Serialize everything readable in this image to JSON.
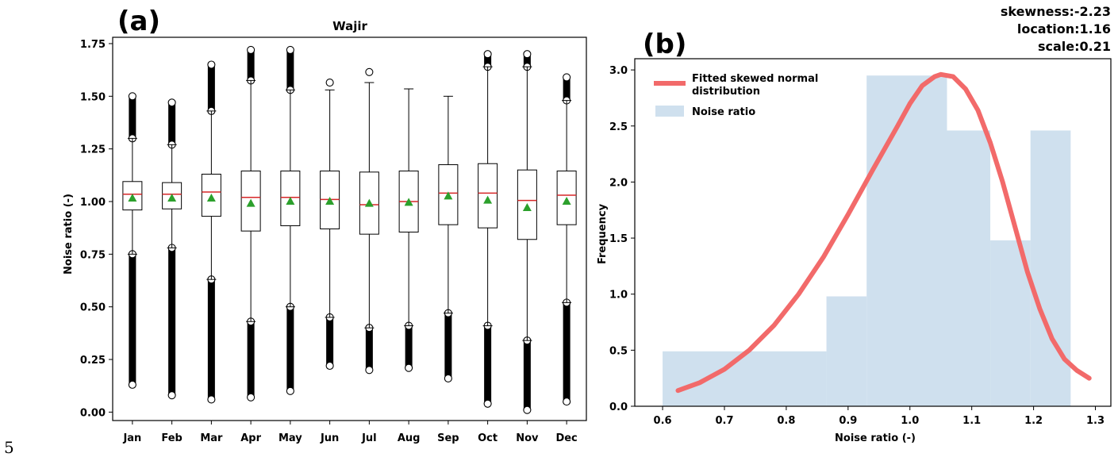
{
  "page_number": "5",
  "chart_data": [
    {
      "panel_label": "(a)",
      "type": "box",
      "title": "Wajir",
      "xlabel": "",
      "ylabel": "Noise ratio (-)",
      "ylim": [
        -0.04,
        1.78
      ],
      "yticks": [
        0.0,
        0.25,
        0.5,
        0.75,
        1.0,
        1.25,
        1.5,
        1.75
      ],
      "ytick_labels": [
        "0.00",
        "0.25",
        "0.50",
        "0.75",
        "1.00",
        "1.25",
        "1.50",
        "1.75"
      ],
      "colors": {
        "box": "#000000",
        "median": "#d62728",
        "mean_marker": "#2ca02c"
      },
      "categories": [
        "Jan",
        "Feb",
        "Mar",
        "Apr",
        "May",
        "Jun",
        "Jul",
        "Aug",
        "Sep",
        "Oct",
        "Nov",
        "Dec"
      ],
      "boxes": [
        {
          "q1": 0.96,
          "median": 1.035,
          "q3": 1.095,
          "mean": 1.015,
          "whisker_low": 0.75,
          "whisker_high": 1.3,
          "outlier_low": [
            0.13,
            0.75
          ],
          "outlier_high": [
            1.3,
            1.5
          ]
        },
        {
          "q1": 0.965,
          "median": 1.035,
          "q3": 1.09,
          "mean": 1.015,
          "whisker_low": 0.78,
          "whisker_high": 1.27,
          "outlier_low": [
            0.08,
            0.78
          ],
          "outlier_high": [
            1.27,
            1.47
          ]
        },
        {
          "q1": 0.93,
          "median": 1.045,
          "q3": 1.13,
          "mean": 1.015,
          "whisker_low": 0.63,
          "whisker_high": 1.43,
          "outlier_low": [
            0.06,
            0.63
          ],
          "outlier_high": [
            1.43,
            1.65
          ]
        },
        {
          "q1": 0.86,
          "median": 1.02,
          "q3": 1.145,
          "mean": 0.99,
          "whisker_low": 0.43,
          "whisker_high": 1.575,
          "outlier_low": [
            0.07,
            0.43
          ],
          "outlier_high": [
            1.575,
            1.72
          ]
        },
        {
          "q1": 0.885,
          "median": 1.02,
          "q3": 1.145,
          "mean": 1.0,
          "whisker_low": 0.5,
          "whisker_high": 1.53,
          "outlier_low": [
            0.1,
            0.5
          ],
          "outlier_high": [
            1.53,
            1.72
          ]
        },
        {
          "q1": 0.87,
          "median": 1.01,
          "q3": 1.145,
          "mean": 1.0,
          "whisker_low": 0.45,
          "whisker_high": 1.53,
          "outlier_low": [
            0.22,
            0.45
          ],
          "outlier_high": [
            1.565,
            1.565
          ]
        },
        {
          "q1": 0.845,
          "median": 0.985,
          "q3": 1.14,
          "mean": 0.99,
          "whisker_low": 0.4,
          "whisker_high": 1.565,
          "outlier_low": [
            0.2,
            0.4
          ],
          "outlier_high": [
            1.615,
            1.615
          ]
        },
        {
          "q1": 0.855,
          "median": 1.0,
          "q3": 1.145,
          "mean": 0.995,
          "whisker_low": 0.41,
          "whisker_high": 1.535,
          "outlier_low": [
            0.21,
            0.41
          ],
          "outlier_high": []
        },
        {
          "q1": 0.89,
          "median": 1.04,
          "q3": 1.175,
          "mean": 1.025,
          "whisker_low": 0.47,
          "whisker_high": 1.5,
          "outlier_low": [
            0.16,
            0.47
          ],
          "outlier_high": []
        },
        {
          "q1": 0.875,
          "median": 1.04,
          "q3": 1.18,
          "mean": 1.005,
          "whisker_low": 0.41,
          "whisker_high": 1.64,
          "outlier_low": [
            0.04,
            0.41
          ],
          "outlier_high": [
            1.64,
            1.7
          ]
        },
        {
          "q1": 0.82,
          "median": 1.005,
          "q3": 1.15,
          "mean": 0.97,
          "whisker_low": 0.34,
          "whisker_high": 1.64,
          "outlier_low": [
            0.01,
            0.34
          ],
          "outlier_high": [
            1.64,
            1.7
          ]
        },
        {
          "q1": 0.89,
          "median": 1.03,
          "q3": 1.145,
          "mean": 1.0,
          "whisker_low": 0.52,
          "whisker_high": 1.48,
          "outlier_low": [
            0.05,
            0.52
          ],
          "outlier_high": [
            1.48,
            1.59
          ]
        }
      ]
    },
    {
      "panel_label": "(b)",
      "type": "histogram_with_fit",
      "xlabel": "Noise ratio (-)",
      "ylabel": "Frequency",
      "xlim": [
        0.555,
        1.325
      ],
      "ylim": [
        0.0,
        3.1
      ],
      "xticks": [
        0.6,
        0.7,
        0.8,
        0.9,
        1.0,
        1.1,
        1.2,
        1.3
      ],
      "xtick_labels": [
        "0.6",
        "0.7",
        "0.8",
        "0.9",
        "1.0",
        "1.1",
        "1.2",
        "1.3"
      ],
      "yticks": [
        0.0,
        0.5,
        1.0,
        1.5,
        2.0,
        2.5,
        3.0
      ],
      "ytick_labels": [
        "0.0",
        "0.5",
        "1.0",
        "1.5",
        "2.0",
        "2.5",
        "3.0"
      ],
      "stats": [
        "skewness:-2.23",
        "location:1.16",
        "scale:0.21"
      ],
      "legend": {
        "location": "top-left",
        "items": [
          "Fitted skewed normal distribution",
          "Noise ratio"
        ]
      },
      "colors": {
        "fit": "#f26a6a",
        "hist": "#cfe0ee"
      },
      "histogram": {
        "name": "Noise ratio",
        "bins": [
          {
            "x0": 0.6,
            "x1": 0.865,
            "height": 0.49
          },
          {
            "x0": 0.865,
            "x1": 0.93,
            "height": 0.98
          },
          {
            "x0": 0.93,
            "x1": 1.06,
            "height": 2.95
          },
          {
            "x0": 1.06,
            "x1": 1.13,
            "height": 2.46
          },
          {
            "x0": 1.13,
            "x1": 1.195,
            "height": 1.48
          },
          {
            "x0": 1.195,
            "x1": 1.26,
            "height": 2.46
          }
        ]
      },
      "fit": {
        "name": "Fitted skewed normal distribution",
        "x": [
          0.625,
          0.66,
          0.7,
          0.74,
          0.78,
          0.82,
          0.86,
          0.9,
          0.94,
          0.98,
          1.0,
          1.02,
          1.04,
          1.05,
          1.07,
          1.09,
          1.11,
          1.13,
          1.15,
          1.17,
          1.19,
          1.21,
          1.23,
          1.25,
          1.27,
          1.29
        ],
        "y": [
          0.14,
          0.21,
          0.33,
          0.5,
          0.72,
          1.0,
          1.33,
          1.71,
          2.11,
          2.5,
          2.7,
          2.86,
          2.94,
          2.96,
          2.94,
          2.83,
          2.64,
          2.35,
          2.0,
          1.6,
          1.2,
          0.87,
          0.6,
          0.42,
          0.32,
          0.25
        ]
      }
    }
  ]
}
